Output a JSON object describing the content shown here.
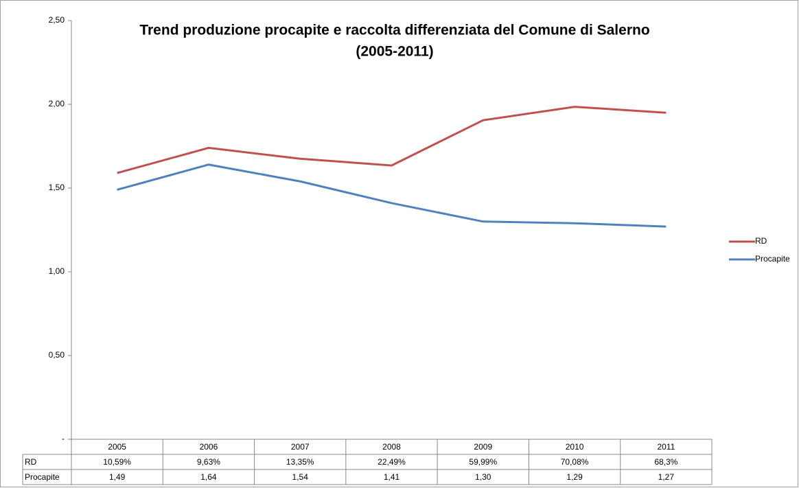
{
  "chart_data": {
    "type": "line",
    "title": "Trend produzione procapite e raccolta differenziata del Comune di Salerno",
    "subtitle": "(2005-2011)",
    "categories": [
      "2005",
      "2006",
      "2007",
      "2008",
      "2009",
      "2010",
      "2011"
    ],
    "series": [
      {
        "name": "RD",
        "color": "#c0504d",
        "values": [
          1.59,
          1.74,
          1.675,
          1.635,
          1.905,
          1.985,
          1.95
        ]
      },
      {
        "name": "Procapite",
        "color": "#4f81bd",
        "values": [
          1.49,
          1.64,
          1.54,
          1.41,
          1.3,
          1.29,
          1.27
        ]
      }
    ],
    "ylim": [
      0,
      2.5
    ],
    "yticks": [
      {
        "value": 0,
        "label": "-"
      },
      {
        "value": 0.5,
        "label": "0,50"
      },
      {
        "value": 1,
        "label": "1,00"
      },
      {
        "value": 1.5,
        "label": "1,50"
      },
      {
        "value": 2,
        "label": "2,00"
      },
      {
        "value": 2.5,
        "label": "2,50"
      }
    ],
    "grid": false,
    "legend": "right",
    "data_table": [
      [
        "10,59%",
        "9,63%",
        "13,35%",
        "22,49%",
        "59,99%",
        "70,08%",
        "68,3%"
      ],
      [
        "1,49",
        "1,64",
        "1,54",
        "1,41",
        "1,30",
        "1,29",
        "1,27"
      ]
    ]
  }
}
